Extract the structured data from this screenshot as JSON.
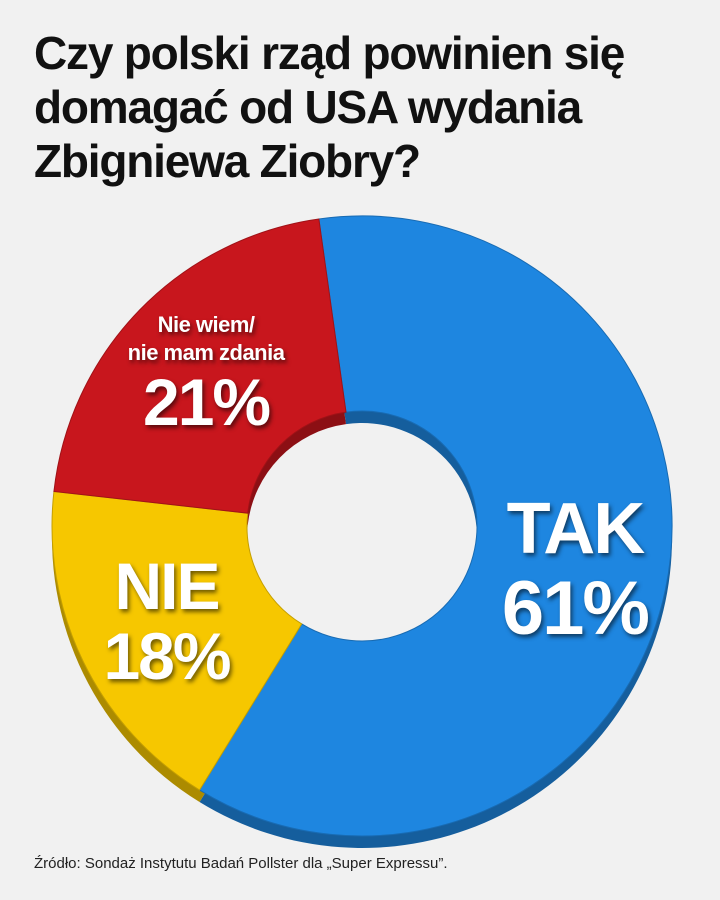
{
  "chart_data": {
    "type": "pie",
    "title": "Czy polski rząd powinien się domagać od USA wydania Zbigniewa Ziobry?",
    "categories": [
      "TAK",
      "NIE",
      "Nie wiem/\nnie mam zdania"
    ],
    "values": [
      61,
      18,
      21
    ],
    "value_labels": [
      "61%",
      "18%",
      "21%"
    ],
    "colors": [
      "#1e86e0",
      "#f6c700",
      "#c8161d"
    ],
    "donut": true,
    "source": "Źródło: Sondaż Instytutu Badań Pollster dla „Super Expressu”."
  }
}
